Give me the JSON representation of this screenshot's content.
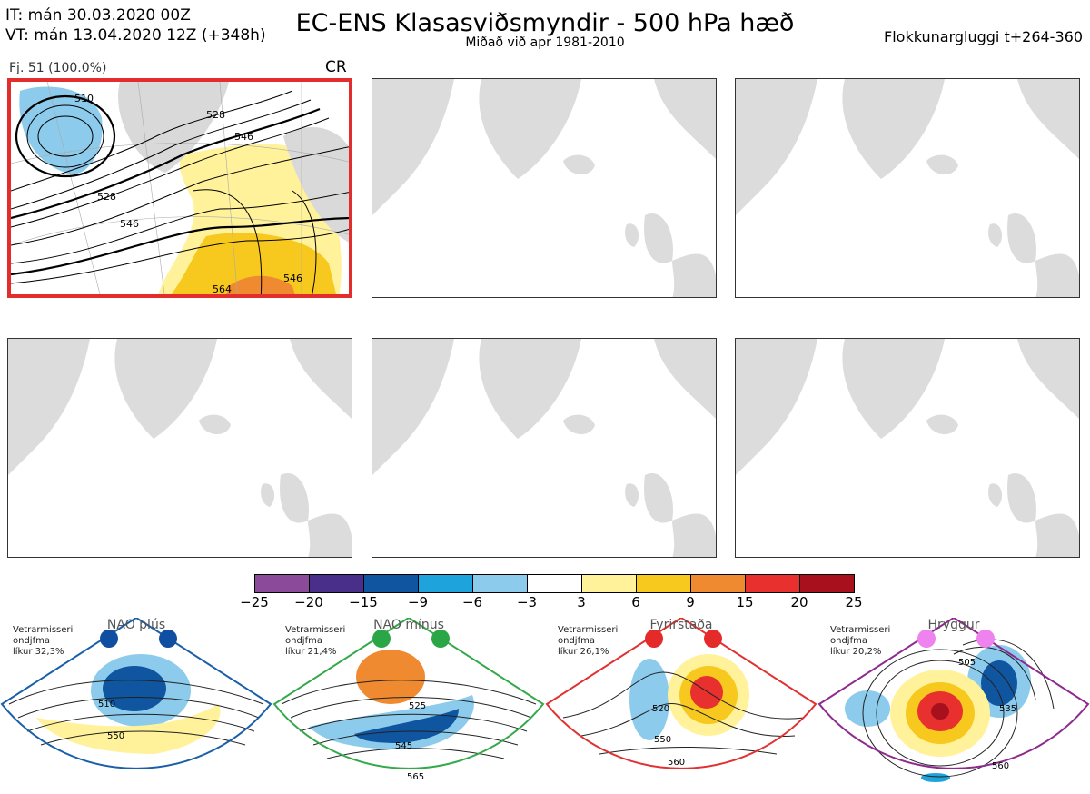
{
  "header": {
    "it_line": "IT: mán 30.03.2020 00Z",
    "vt_line": "VT: mán 13.04.2020 12Z  (+348h)",
    "title": "EC-ENS Klasasviðsmyndir - 500 hPa hæð",
    "subtitle": "Miðað við apr 1981-2010",
    "window": "Flokkunargluggi t+264-360"
  },
  "panel_selected": {
    "label": "Fj. 51 (100.0%)",
    "regime_code": "CR",
    "contour_labels": [
      "510",
      "528",
      "546",
      "528",
      "546",
      "546",
      "564"
    ]
  },
  "colorbar": {
    "colors": [
      "#8b4a9a",
      "#4a2f8a",
      "#0f55a0",
      "#1ea3dc",
      "#8ccbec",
      "#ffffff",
      "#fff29a",
      "#f7c81e",
      "#ef8a30",
      "#e8302e",
      "#a8101e"
    ],
    "ticks": [
      "−25",
      "−20",
      "−15",
      "−9",
      "−6",
      "−3",
      "3",
      "6",
      "9",
      "15",
      "20",
      "25"
    ]
  },
  "regimes": [
    {
      "name": "NAO plús",
      "note1": "Vetrarmisseri",
      "note2": "ondjfma",
      "note3": "líkur 32,3%",
      "color": "#1a5fa8",
      "dot": "#0f4ea0",
      "labels": [
        "510",
        "550"
      ]
    },
    {
      "name": "NAO mínus",
      "note1": "Vetrarmisseri",
      "note2": "ondjfma",
      "note3": "líkur 21,4%",
      "color": "#33a94a",
      "dot": "#2aa646",
      "labels": [
        "525",
        "545",
        "565"
      ]
    },
    {
      "name": "Fyrirstaða",
      "note1": "Vetrarmisseri",
      "note2": "ondjfma",
      "note3": "líkur 26,1%",
      "color": "#e23030",
      "dot": "#e52a2a",
      "labels": [
        "520",
        "550",
        "560"
      ]
    },
    {
      "name": "Hryggur",
      "note1": "Vetrarmisseri",
      "note2": "ondjfma",
      "note3": "líkur 20,2%",
      "color": "#8e2a8e",
      "dot": "#ee82ee",
      "labels": [
        "505",
        "535",
        "560"
      ]
    }
  ]
}
